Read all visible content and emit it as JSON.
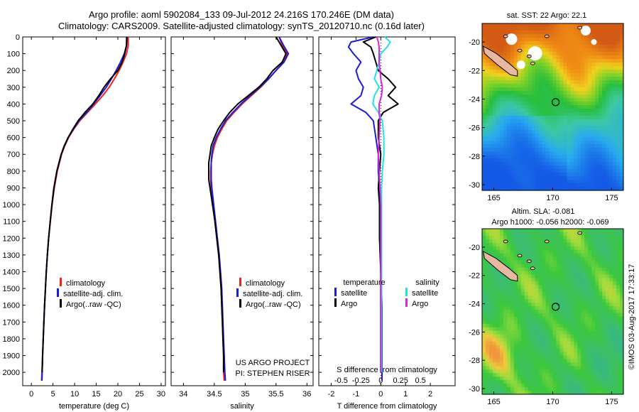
{
  "header": {
    "title_line1": "Argo profile: aoml 5902084_133 09-Jul-2012 24.216S 170.246E (DM data)",
    "title_line2": "Climatology: CARS2009. Satellite-adjusted climatology: synTS_20120710.nc (0.16d later)"
  },
  "colors": {
    "climatology": "#ee2020",
    "satellite": "#1a1ad8",
    "argo": "#000000",
    "sal_satellite": "#22e0e8",
    "sal_argo": "#dd22dd"
  },
  "legend": {
    "climatology": "climatology",
    "satellite": "satellite-adj. clim.",
    "argo": "Argo(..raw -QC)",
    "temperature": "temperature",
    "salinity": "salinity",
    "satellite_short": "satellite",
    "argo_short": "Argo"
  },
  "credits": {
    "project": "US ARGO PROJECT",
    "pi": "PI: STEPHEN RISER",
    "stamp": "©IMOS 03-Aug-2017 17:33:17"
  },
  "maps": {
    "sst_title": "sat. SST: 22 Argo: 22.1",
    "sla_title_line1": "Altim. SLA: -0.081",
    "sla_title_line2": "Argo h1000: -0.056 h2000: -0.069",
    "x_ticks": [
      "165",
      "170",
      "175"
    ],
    "y_ticks": [
      "-20",
      "-22",
      "-24",
      "-26",
      "-28",
      "-30"
    ],
    "float_position": {
      "lon": 170.246,
      "lat": -24.216
    }
  },
  "chart_data": [
    {
      "type": "line",
      "name": "temperature-profile",
      "xlabel": "temperature (deg C)",
      "ylabel": "depth",
      "xlim": [
        -2,
        31
      ],
      "ylim": [
        2080,
        0
      ],
      "x_ticks": [
        0,
        5,
        10,
        15,
        20,
        25,
        30
      ],
      "y_ticks": [
        0,
        100,
        200,
        300,
        400,
        500,
        600,
        700,
        800,
        900,
        1000,
        1100,
        1200,
        1300,
        1400,
        1500,
        1600,
        1700,
        1800,
        1900,
        2000
      ],
      "series": [
        {
          "name": "climatology",
          "depth": [
            0,
            50,
            100,
            150,
            200,
            250,
            300,
            350,
            400,
            450,
            500,
            550,
            600,
            650,
            700,
            800,
            900,
            1000,
            1100,
            1200,
            1300,
            1400,
            1500,
            1600,
            1700,
            1800,
            1900,
            2000,
            2050
          ],
          "values": [
            22.4,
            22.4,
            22.0,
            21.2,
            20.3,
            19.2,
            18.0,
            16.5,
            14.8,
            13.0,
            11.2,
            9.8,
            8.6,
            7.7,
            7.0,
            6.0,
            5.3,
            4.8,
            4.4,
            4.0,
            3.7,
            3.45,
            3.25,
            3.05,
            2.9,
            2.75,
            2.6,
            2.45,
            2.35
          ]
        },
        {
          "name": "satellite-adj. clim.",
          "depth": [
            0,
            50,
            100,
            150,
            200,
            250,
            300,
            350,
            400,
            450,
            500,
            550,
            600,
            650,
            700,
            800,
            900,
            1000,
            1100,
            1200,
            1300,
            1400,
            1500,
            1600,
            1700,
            1800,
            1900,
            2000,
            2050
          ],
          "values": [
            22.0,
            22.0,
            21.5,
            20.6,
            19.6,
            18.5,
            17.3,
            15.9,
            14.4,
            12.8,
            11.0,
            9.7,
            8.5,
            7.6,
            6.9,
            5.9,
            5.2,
            4.75,
            4.35,
            4.0,
            3.7,
            3.45,
            3.25,
            3.05,
            2.9,
            2.75,
            2.6,
            2.5,
            2.45
          ]
        },
        {
          "name": "Argo(..raw -QC)",
          "depth": [
            0,
            50,
            100,
            150,
            200,
            250,
            300,
            350,
            400,
            450,
            500,
            550,
            600,
            650,
            700,
            800,
            900,
            1000,
            1100,
            1200,
            1300,
            1400,
            1500,
            1600,
            1700,
            1800,
            1900,
            2000
          ],
          "values": [
            22.1,
            22.0,
            21.6,
            21.0,
            20.0,
            18.3,
            16.8,
            15.6,
            14.2,
            12.4,
            10.8,
            9.6,
            8.5,
            7.6,
            6.9,
            5.9,
            5.2,
            4.75,
            4.35,
            4.0,
            3.7,
            3.45,
            3.25,
            3.05,
            2.9,
            2.75,
            2.6,
            2.5
          ]
        }
      ]
    },
    {
      "type": "line",
      "name": "salinity-profile",
      "xlabel": "salinity",
      "ylabel": "depth",
      "xlim": [
        33.8,
        36.1
      ],
      "ylim": [
        2080,
        0
      ],
      "x_ticks": [
        34,
        34.5,
        35,
        35.5,
        36
      ],
      "series": [
        {
          "name": "climatology",
          "depth": [
            0,
            50,
            100,
            150,
            200,
            250,
            300,
            350,
            400,
            450,
            500,
            550,
            600,
            650,
            700,
            750,
            800,
            850,
            900,
            1000,
            1100,
            1200,
            1300,
            1400,
            1500,
            1600,
            1700,
            1800,
            1900,
            2000,
            2050
          ],
          "values": [
            35.55,
            35.6,
            35.68,
            35.62,
            35.5,
            35.38,
            35.25,
            35.1,
            34.95,
            34.82,
            34.7,
            34.62,
            34.55,
            34.5,
            34.47,
            34.45,
            34.44,
            34.44,
            34.45,
            34.48,
            34.51,
            34.54,
            34.57,
            34.59,
            34.61,
            34.62,
            34.63,
            34.64,
            34.65,
            34.65,
            34.66
          ]
        },
        {
          "name": "satellite-adj. clim.",
          "depth": [
            0,
            50,
            100,
            150,
            200,
            250,
            300,
            350,
            400,
            450,
            500,
            550,
            600,
            650,
            700,
            750,
            800,
            850,
            900,
            1000,
            1100,
            1200,
            1300,
            1400,
            1500,
            1600,
            1700,
            1800,
            1900,
            2000,
            2050
          ],
          "values": [
            35.55,
            35.62,
            35.7,
            35.63,
            35.5,
            35.38,
            35.24,
            35.08,
            34.93,
            34.8,
            34.68,
            34.6,
            34.53,
            34.48,
            34.46,
            34.45,
            34.45,
            34.45,
            34.46,
            34.49,
            34.52,
            34.55,
            34.58,
            34.6,
            34.62,
            34.63,
            34.64,
            34.65,
            34.66,
            34.67,
            34.68
          ]
        },
        {
          "name": "Argo(..raw -QC)",
          "depth": [
            0,
            50,
            100,
            150,
            200,
            250,
            300,
            350,
            400,
            450,
            500,
            550,
            600,
            650,
            700,
            750,
            800,
            850,
            900,
            1000,
            1100,
            1200,
            1300,
            1400,
            1500,
            1600,
            1700,
            1800,
            1900,
            2000
          ],
          "values": [
            35.5,
            35.58,
            35.66,
            35.6,
            35.45,
            35.35,
            35.22,
            35.05,
            34.88,
            34.75,
            34.65,
            34.56,
            34.5,
            34.45,
            34.43,
            34.41,
            34.41,
            34.41,
            34.43,
            34.47,
            34.51,
            34.54,
            34.57,
            34.59,
            34.61,
            34.62,
            34.63,
            34.64,
            34.65,
            34.65
          ]
        }
      ]
    },
    {
      "type": "line",
      "name": "difference-profile",
      "xlabel": "T difference from climatology",
      "xlabel_top": "S difference from climatology",
      "xlim": [
        -2.5,
        3
      ],
      "ylim": [
        2080,
        0
      ],
      "x_ticks": [
        -2,
        -1,
        0,
        1,
        2
      ],
      "x_ticks_salinity": [
        "-0.5",
        "-0.25",
        "0",
        "0.25",
        "0.5"
      ],
      "series": [
        {
          "name": "temperature satellite",
          "depth": [
            0,
            30,
            60,
            100,
            150,
            200,
            250,
            300,
            350,
            400,
            450,
            500,
            600,
            700,
            800,
            900,
            1000,
            1200,
            1400,
            1600,
            1800,
            2000,
            2050
          ],
          "values": [
            -0.3,
            -1.2,
            -1.3,
            -1.1,
            -0.8,
            -1.0,
            -0.9,
            -0.7,
            -0.8,
            -1.2,
            -0.6,
            -0.3,
            -0.2,
            -0.1,
            -0.1,
            -0.05,
            0.0,
            0.0,
            0.0,
            0.05,
            0.05,
            0.05,
            0.05
          ]
        },
        {
          "name": "temperature Argo",
          "depth": [
            0,
            30,
            60,
            100,
            150,
            200,
            250,
            300,
            350,
            400,
            450,
            500,
            600,
            700,
            800,
            900,
            1000,
            1200,
            1400,
            1600,
            1800,
            2000
          ],
          "values": [
            -0.2,
            -0.7,
            -0.4,
            -0.3,
            -0.2,
            -0.1,
            0.3,
            0.6,
            0.3,
            0.7,
            0.1,
            -0.1,
            -0.1,
            0.0,
            -0.05,
            -0.1,
            -0.05,
            -0.05,
            0.0,
            0.0,
            0.0,
            0.0
          ]
        },
        {
          "name": "salinity satellite",
          "depth": [
            0,
            30,
            60,
            100,
            150,
            200,
            250,
            300,
            350,
            400,
            450,
            500,
            600,
            700,
            800,
            900,
            1000,
            1200,
            1400,
            1600,
            1800,
            2000
          ],
          "values": [
            0.05,
            0.12,
            0.08,
            0.0,
            -0.02,
            -0.05,
            -0.08,
            -0.02,
            -0.08,
            -0.1,
            -0.03,
            0.02,
            0.04,
            0.04,
            0.02,
            0.01,
            0.01,
            0.01,
            0.01,
            0.01,
            0.01,
            0.01
          ]
        },
        {
          "name": "salinity Argo",
          "depth": [
            0,
            30,
            60,
            100,
            150,
            200,
            250,
            300,
            350,
            400,
            450,
            500,
            600,
            700,
            800,
            900,
            1000,
            1200,
            1400,
            1600,
            1800,
            2000
          ],
          "values": [
            -0.05,
            -0.03,
            -0.02,
            -0.02,
            -0.02,
            -0.01,
            0.0,
            0.02,
            0.01,
            -0.02,
            -0.02,
            -0.01,
            -0.02,
            -0.03,
            -0.02,
            -0.01,
            0.0,
            0.0,
            0.0,
            0.0,
            0.0,
            0.0
          ]
        }
      ]
    }
  ]
}
